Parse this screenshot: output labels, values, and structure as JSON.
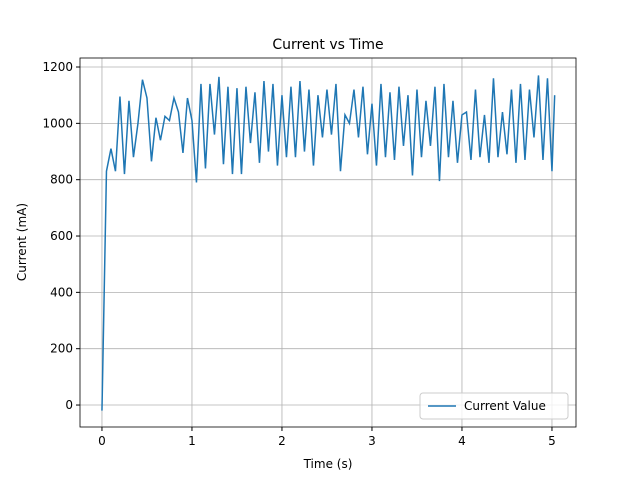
{
  "chart_data": {
    "type": "line",
    "title": "Current vs Time",
    "xlabel": "Time (s)",
    "ylabel": "Current (mA)",
    "x": [
      0,
      0.05,
      0.1,
      0.15,
      0.2,
      0.25,
      0.3,
      0.35,
      0.4,
      0.45,
      0.5,
      0.55,
      0.6,
      0.65,
      0.7,
      0.75,
      0.8,
      0.85,
      0.9,
      0.95,
      1.0,
      1.05,
      1.1,
      1.15,
      1.2,
      1.25,
      1.3,
      1.35,
      1.4,
      1.45,
      1.5,
      1.55,
      1.6,
      1.65,
      1.7,
      1.75,
      1.8,
      1.85,
      1.9,
      1.95,
      2.0,
      2.05,
      2.1,
      2.15,
      2.2,
      2.25,
      2.3,
      2.35,
      2.4,
      2.45,
      2.5,
      2.55,
      2.6,
      2.65,
      2.7,
      2.75,
      2.8,
      2.85,
      2.9,
      2.95,
      3.0,
      3.05,
      3.1,
      3.15,
      3.2,
      3.25,
      3.3,
      3.35,
      3.4,
      3.45,
      3.5,
      3.55,
      3.6,
      3.65,
      3.7,
      3.75,
      3.8,
      3.85,
      3.9,
      3.95,
      4.0,
      4.05,
      4.1,
      4.15,
      4.2,
      4.25,
      4.3,
      4.35,
      4.4,
      4.45,
      4.5,
      4.55,
      4.6,
      4.65,
      4.7,
      4.75,
      4.8,
      4.85,
      4.9,
      4.95,
      5.0,
      5.03
    ],
    "series": [
      {
        "name": "Current Value",
        "color": "#1f77b4",
        "values": [
          -20,
          830,
          910,
          830,
          1095,
          820,
          1080,
          880,
          1000,
          1155,
          1090,
          865,
          1020,
          940,
          1025,
          1010,
          1090,
          1040,
          895,
          1090,
          1010,
          790,
          1140,
          840,
          1140,
          960,
          1165,
          855,
          1130,
          820,
          1125,
          820,
          1130,
          930,
          1110,
          860,
          1150,
          900,
          1140,
          850,
          1100,
          880,
          1130,
          880,
          1150,
          900,
          1120,
          850,
          1100,
          950,
          1120,
          960,
          1140,
          830,
          1030,
          1000,
          1120,
          950,
          1130,
          890,
          1070,
          850,
          1140,
          880,
          1110,
          870,
          1130,
          920,
          1100,
          815,
          1120,
          880,
          1080,
          920,
          1130,
          795,
          1140,
          880,
          1080,
          860,
          1030,
          1040,
          870,
          1120,
          880,
          1030,
          860,
          1160,
          880,
          1040,
          890,
          1120,
          860,
          1140,
          870,
          1120,
          950,
          1170,
          870,
          1160,
          830,
          1100
        ]
      }
    ],
    "xlim": [
      -0.244,
      5.267
    ],
    "ylim": [
      -78,
      1232
    ],
    "xticks": [
      0,
      1,
      2,
      3,
      4,
      5
    ],
    "yticks": [
      0,
      200,
      400,
      600,
      800,
      1000,
      1200
    ],
    "grid": true,
    "legend": "lower right"
  }
}
